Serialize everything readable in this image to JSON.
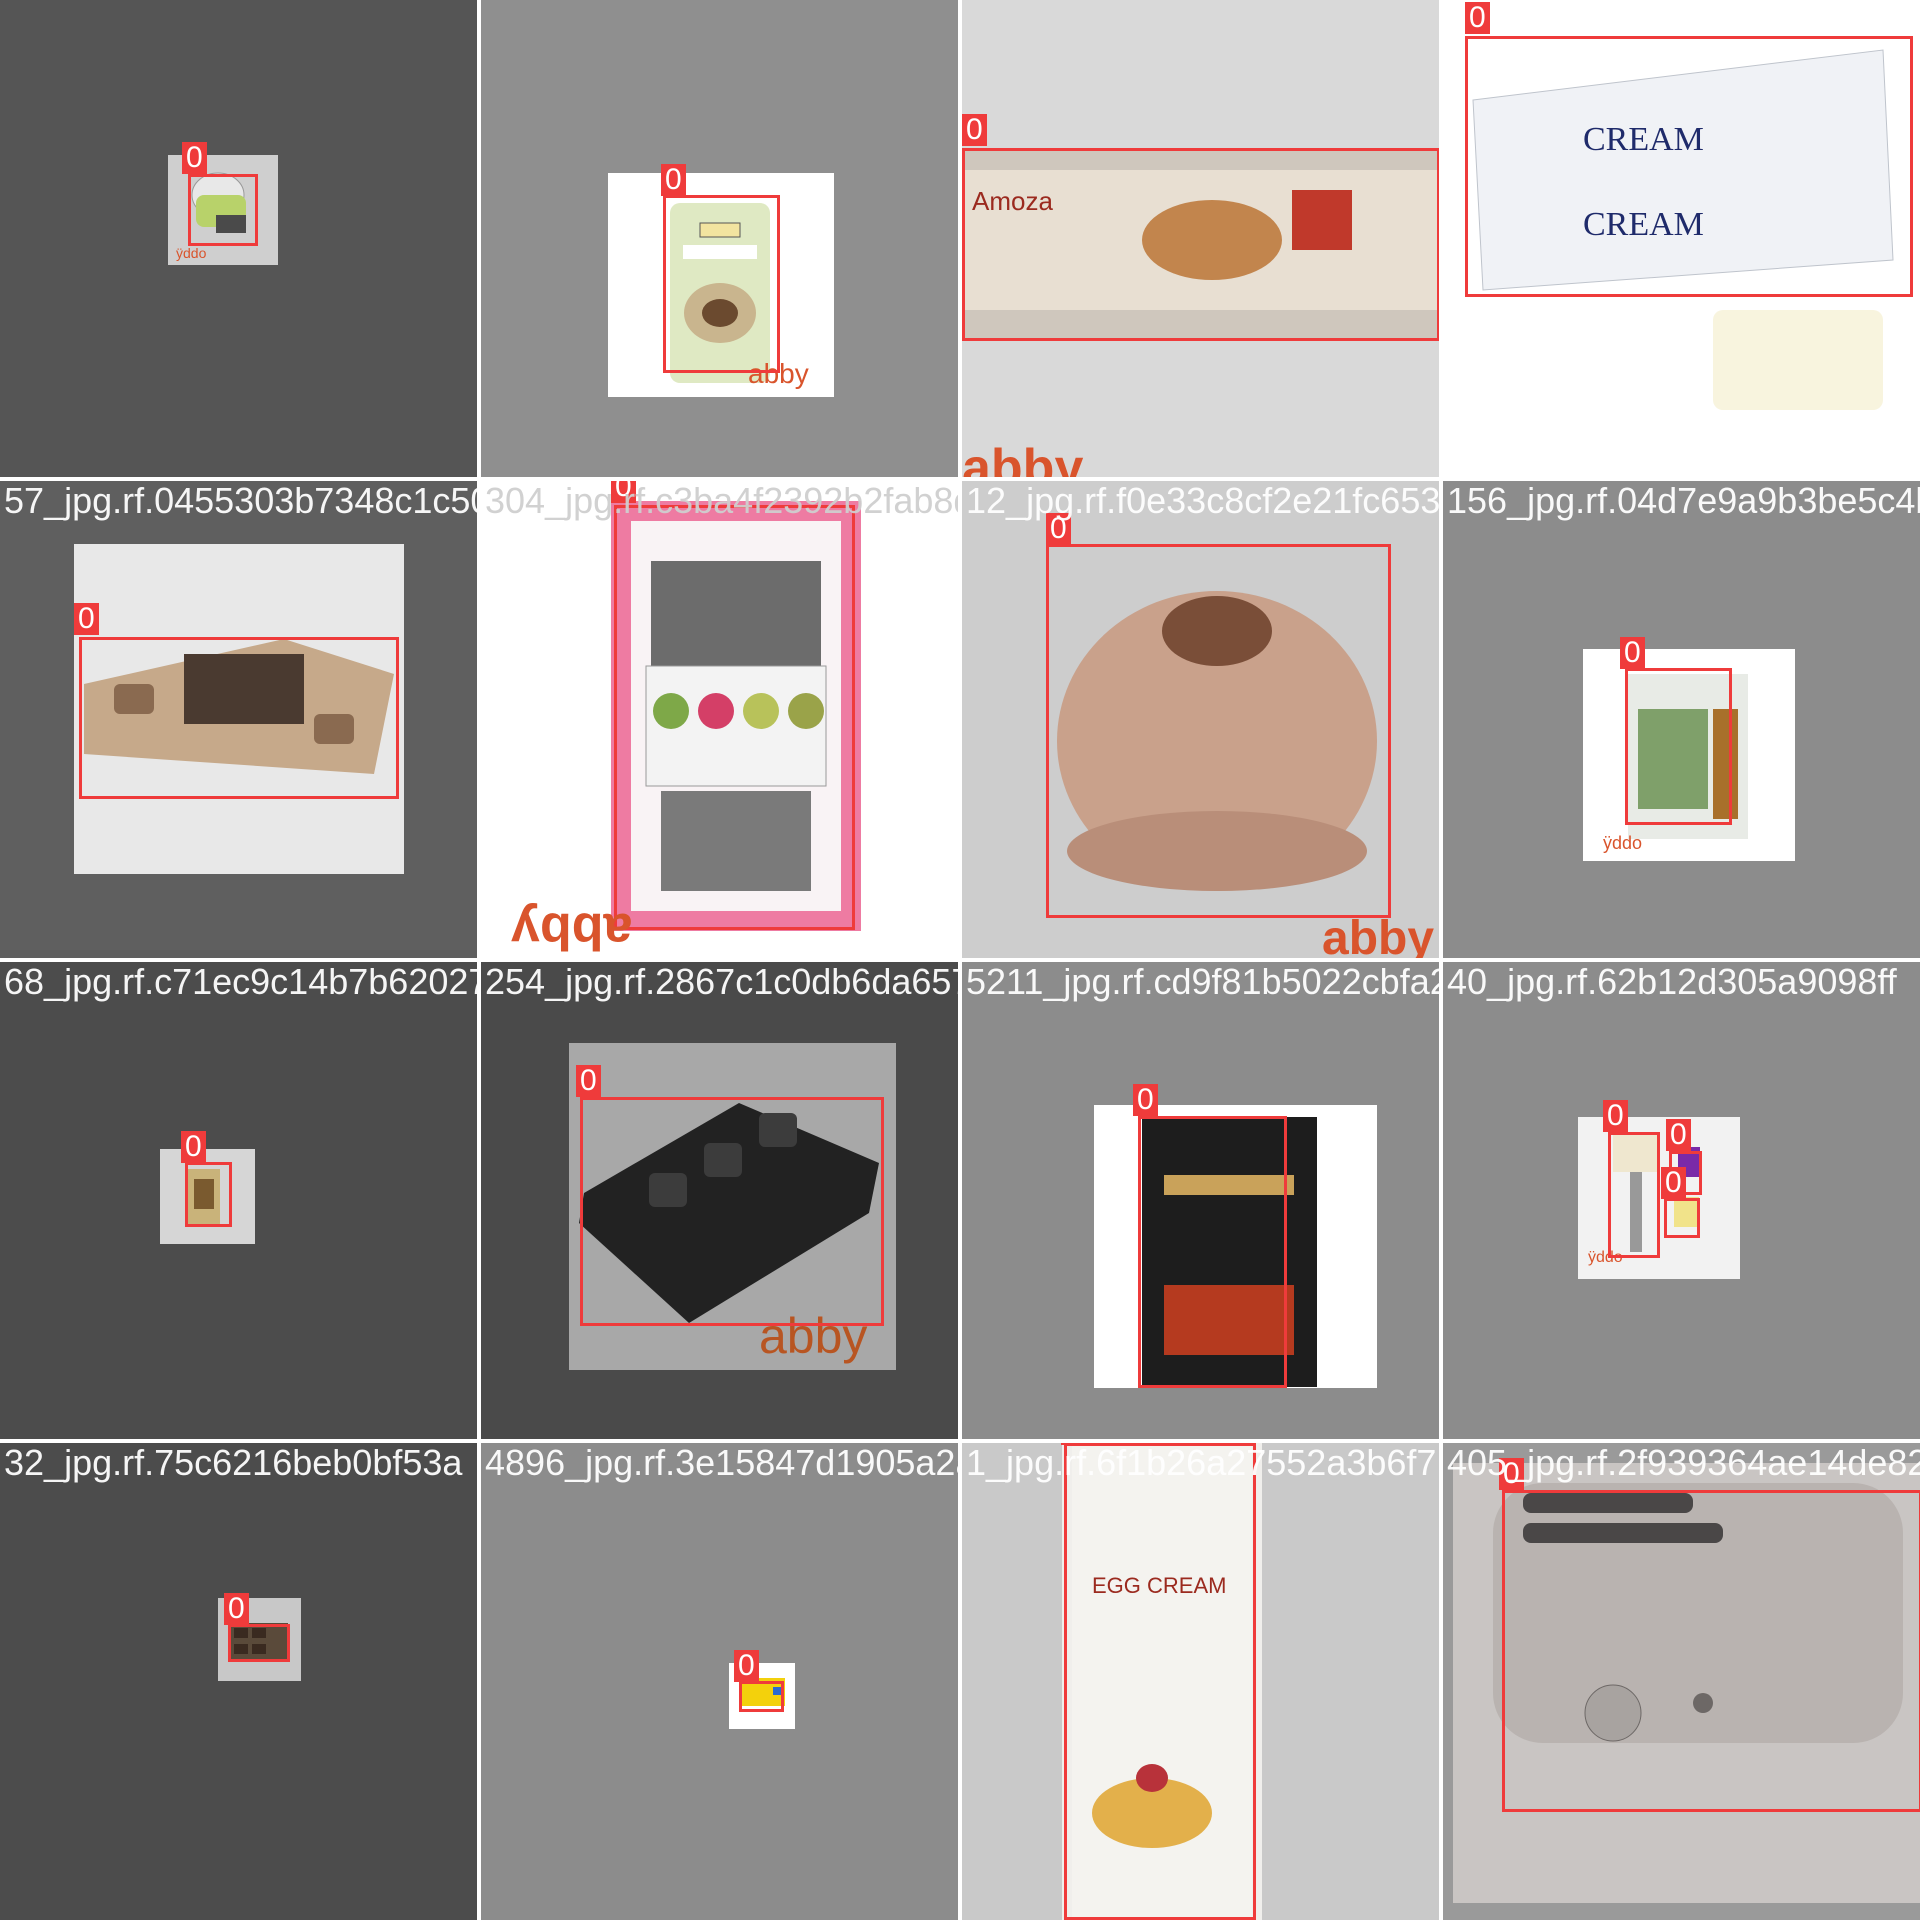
{
  "class_label": "0",
  "watermark": "abby",
  "colors": {
    "box": "#ef3b3b",
    "label_text": "#ffffff",
    "watermark": "#d9542c"
  },
  "rows": [
    {
      "filenames": []
    },
    {
      "filenames": [
        "57_jpg.rf.0455303b7348c1c50",
        "304_jpg.rf.c3ba4f2392b2fab8d6d",
        "12_jpg.rf.f0e33c8cf2e21fc653",
        "156_jpg.rf.04d7e9a9b3be5c4b"
      ]
    },
    {
      "filenames": [
        "68_jpg.rf.c71ec9c14b7b62027",
        "254_jpg.rf.2867c1c0db6da657c3",
        "5211_jpg.rf.cd9f81b5022cbfa24",
        "40_jpg.rf.62b12d305a9098ff"
      ]
    },
    {
      "filenames": [
        "32_jpg.rf.75c6216beb0bf53a",
        "4896_jpg.rf.3e15847d1905a2ac78",
        "1_jpg.rf.6f1b26a27552a3b6f7",
        "405_jpg.rf.2f939364ae14de82c"
      ]
    }
  ],
  "tiles": [
    {
      "name": "tile-kitchen-scale",
      "labels": [
        "0"
      ]
    },
    {
      "name": "tile-sour-cream",
      "labels": [
        "0"
      ]
    },
    {
      "name": "tile-puff-pastry",
      "labels": [
        "0"
      ]
    },
    {
      "name": "tile-cream-cheese",
      "labels": [
        "0"
      ]
    },
    {
      "name": "tile-loaf-pan-tray",
      "labels": [
        "0"
      ]
    },
    {
      "name": "tile-piping-tips",
      "labels": [
        "0"
      ]
    },
    {
      "name": "tile-bundt-pan",
      "labels": [
        "0"
      ]
    },
    {
      "name": "tile-matcha-bag",
      "labels": [
        "0"
      ]
    },
    {
      "name": "tile-small-package",
      "labels": [
        "0"
      ]
    },
    {
      "name": "tile-black-loaf-pan",
      "labels": [
        "0"
      ]
    },
    {
      "name": "tile-chocolate-bag",
      "labels": [
        "0"
      ]
    },
    {
      "name": "tile-cookie-press",
      "labels": [
        "0",
        "0",
        "0"
      ]
    },
    {
      "name": "tile-mini-tray",
      "labels": [
        "0"
      ]
    },
    {
      "name": "tile-yellow-pack",
      "labels": [
        "0"
      ]
    },
    {
      "name": "tile-egg-cream-carton",
      "labels": [
        "0"
      ]
    },
    {
      "name": "tile-toaster",
      "labels": [
        "0"
      ]
    }
  ]
}
